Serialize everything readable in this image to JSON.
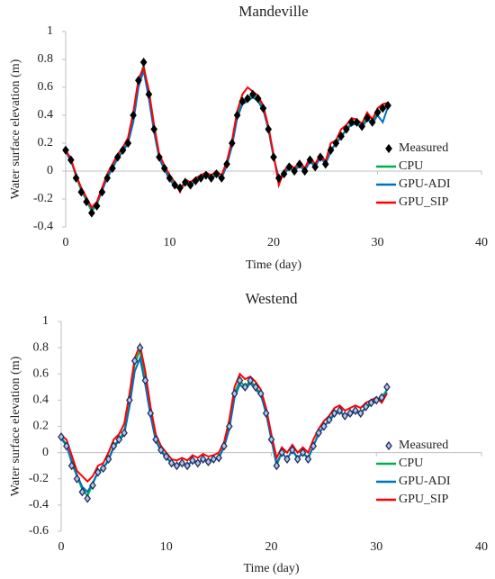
{
  "chart_data": [
    {
      "type": "line",
      "title": "Mandeville",
      "xlabel": "Time (day)",
      "ylabel": "Water surface elevation (m)",
      "xlim": [
        0,
        40
      ],
      "xticks": [
        0,
        10,
        20,
        30,
        40
      ],
      "ylim": [
        -0.4,
        1
      ],
      "yticks": [
        -0.4,
        -0.2,
        0,
        0.2,
        0.4,
        0.6,
        0.8,
        1
      ],
      "x": [
        0,
        0.5,
        1,
        1.5,
        2,
        2.5,
        3,
        3.5,
        4,
        4.5,
        5,
        5.5,
        6,
        6.5,
        7,
        7.5,
        8,
        8.5,
        9,
        9.5,
        10,
        10.5,
        11,
        11.5,
        12,
        12.5,
        13,
        13.5,
        14,
        14.5,
        15,
        15.5,
        16,
        16.5,
        17,
        17.5,
        18,
        18.5,
        19,
        19.5,
        20,
        20.5,
        21,
        21.5,
        22,
        22.5,
        23,
        23.5,
        24,
        24.5,
        25,
        25.5,
        26,
        26.5,
        27,
        27.5,
        28,
        28.5,
        29,
        29.5,
        30,
        30.5,
        31
      ],
      "series": [
        {
          "name": "CPU",
          "color": "#00b050",
          "mode": "line",
          "values": [
            0.15,
            0.08,
            -0.04,
            -0.14,
            -0.21,
            -0.29,
            -0.24,
            -0.14,
            -0.04,
            0.03,
            0.1,
            0.15,
            0.21,
            0.4,
            0.64,
            0.76,
            0.55,
            0.3,
            0.1,
            0.02,
            -0.05,
            -0.1,
            -0.12,
            -0.08,
            -0.1,
            -0.07,
            -0.05,
            -0.03,
            -0.05,
            -0.02,
            -0.05,
            0.05,
            0.2,
            0.4,
            0.5,
            0.52,
            0.55,
            0.52,
            0.45,
            0.3,
            0.1,
            -0.05,
            -0.02,
            0.03,
            0,
            0.05,
            0,
            0.08,
            0.03,
            0.1,
            0.05,
            0.15,
            0.2,
            0.25,
            0.3,
            0.35,
            0.35,
            0.32,
            0.38,
            0.35,
            0.42,
            0.45,
            0.47
          ]
        },
        {
          "name": "GPU-ADI",
          "color": "#0070c0",
          "mode": "line",
          "values": [
            0.14,
            0.07,
            -0.02,
            -0.13,
            -0.2,
            -0.27,
            -0.23,
            -0.14,
            -0.05,
            0.02,
            0.09,
            0.14,
            0.2,
            0.35,
            0.6,
            0.72,
            0.52,
            0.28,
            0.09,
            0.01,
            -0.06,
            -0.11,
            -0.13,
            -0.09,
            -0.1,
            -0.07,
            -0.05,
            -0.03,
            -0.05,
            -0.03,
            -0.05,
            0.04,
            0.18,
            0.38,
            0.48,
            0.5,
            0.53,
            0.5,
            0.44,
            0.3,
            0.1,
            -0.05,
            -0.02,
            0.02,
            0,
            0.04,
            0,
            0.07,
            0.03,
            0.1,
            0.05,
            0.14,
            0.2,
            0.24,
            0.3,
            0.33,
            0.34,
            0.31,
            0.37,
            0.34,
            0.4,
            0.35,
            0.46
          ]
        },
        {
          "name": "GPU_SIP",
          "color": "#ff0000",
          "mode": "line",
          "values": [
            0.15,
            0.09,
            -0.03,
            -0.12,
            -0.19,
            -0.26,
            -0.22,
            -0.12,
            -0.02,
            0.05,
            0.12,
            0.17,
            0.24,
            0.42,
            0.66,
            0.74,
            0.58,
            0.33,
            0.12,
            0.04,
            -0.03,
            -0.08,
            -0.15,
            -0.06,
            -0.08,
            -0.05,
            -0.03,
            -0.01,
            -0.03,
            0,
            -0.03,
            0.07,
            0.22,
            0.43,
            0.55,
            0.6,
            0.57,
            0.54,
            0.47,
            0.32,
            0.12,
            -0.1,
            0,
            0.05,
            0.02,
            0.07,
            0.02,
            0.1,
            0.05,
            0.12,
            0.07,
            0.2,
            0.22,
            0.3,
            0.33,
            0.38,
            0.37,
            0.34,
            0.42,
            0.37,
            0.45,
            0.48,
            0.49
          ]
        },
        {
          "name": "Measured",
          "color": "#000000",
          "mode": "markers",
          "values": [
            0.15,
            0.08,
            -0.05,
            -0.15,
            -0.22,
            -0.3,
            -0.25,
            -0.15,
            -0.05,
            0.02,
            0.1,
            0.15,
            0.2,
            0.4,
            0.65,
            0.78,
            0.55,
            0.3,
            0.1,
            0.02,
            -0.05,
            -0.1,
            -0.12,
            -0.08,
            -0.1,
            -0.07,
            -0.05,
            -0.03,
            -0.05,
            -0.02,
            -0.05,
            0.05,
            0.2,
            0.4,
            0.5,
            0.52,
            0.55,
            0.52,
            0.45,
            0.3,
            0.1,
            -0.05,
            -0.02,
            0.03,
            0,
            0.05,
            0,
            0.08,
            0.03,
            0.1,
            0.05,
            0.15,
            0.2,
            0.25,
            0.3,
            0.35,
            0.35,
            0.32,
            0.38,
            0.35,
            0.42,
            0.45,
            0.47
          ]
        }
      ]
    },
    {
      "type": "line",
      "title": "Westend",
      "xlabel": "Time (day)",
      "ylabel": "Water surface elevation (m)",
      "xlim": [
        0,
        40
      ],
      "xticks": [
        0,
        10,
        20,
        30,
        40
      ],
      "ylim": [
        -0.6,
        1
      ],
      "yticks": [
        -0.6,
        -0.4,
        -0.2,
        0,
        0.2,
        0.4,
        0.6,
        0.8,
        1
      ],
      "x": [
        0,
        0.5,
        1,
        1.5,
        2,
        2.5,
        3,
        3.5,
        4,
        4.5,
        5,
        5.5,
        6,
        6.5,
        7,
        7.5,
        8,
        8.5,
        9,
        9.5,
        10,
        10.5,
        11,
        11.5,
        12,
        12.5,
        13,
        13.5,
        14,
        14.5,
        15,
        15.5,
        16,
        16.5,
        17,
        17.5,
        18,
        18.5,
        19,
        19.5,
        20,
        20.5,
        21,
        21.5,
        22,
        22.5,
        23,
        23.5,
        24,
        24.5,
        25,
        25.5,
        26,
        26.5,
        27,
        27.5,
        28,
        28.5,
        29,
        29.5,
        30,
        30.5,
        31
      ],
      "series": [
        {
          "name": "CPU",
          "color": "#00b050",
          "mode": "line",
          "values": [
            0.12,
            0.06,
            -0.08,
            -0.18,
            -0.28,
            -0.33,
            -0.24,
            -0.15,
            -0.12,
            -0.05,
            0.05,
            0.1,
            0.16,
            0.4,
            0.68,
            0.78,
            0.55,
            0.3,
            0.1,
            0.02,
            -0.03,
            -0.08,
            -0.1,
            -0.08,
            -0.1,
            -0.06,
            -0.08,
            -0.05,
            -0.07,
            -0.05,
            -0.04,
            0.05,
            0.2,
            0.45,
            0.55,
            0.5,
            0.55,
            0.5,
            0.45,
            0.3,
            0.1,
            -0.1,
            0,
            -0.05,
            0.02,
            -0.05,
            0,
            -0.05,
            0.05,
            0.15,
            0.2,
            0.25,
            0.3,
            0.32,
            0.28,
            0.3,
            0.32,
            0.3,
            0.35,
            0.38,
            0.4,
            0.42,
            0.48
          ]
        },
        {
          "name": "GPU-ADI",
          "color": "#0070c0",
          "mode": "line",
          "values": [
            0.11,
            0.05,
            -0.06,
            -0.17,
            -0.26,
            -0.3,
            -0.23,
            -0.15,
            -0.12,
            -0.06,
            0.04,
            0.09,
            0.14,
            0.35,
            0.62,
            0.72,
            0.52,
            0.28,
            0.09,
            0.01,
            -0.04,
            -0.08,
            -0.1,
            -0.08,
            -0.1,
            -0.06,
            -0.08,
            -0.05,
            -0.07,
            -0.05,
            -0.04,
            0.04,
            0.18,
            0.42,
            0.52,
            0.48,
            0.53,
            0.48,
            0.44,
            0.3,
            0.1,
            -0.08,
            0,
            -0.05,
            0.02,
            -0.04,
            0,
            -0.04,
            0.05,
            0.14,
            0.2,
            0.24,
            0.29,
            0.31,
            0.28,
            0.3,
            0.31,
            0.3,
            0.34,
            0.37,
            0.39,
            0.41,
            0.46
          ]
        },
        {
          "name": "GPU_SIP",
          "color": "#ff0000",
          "mode": "line",
          "values": [
            0.13,
            0.1,
            -0.02,
            -0.14,
            -0.18,
            -0.22,
            -0.18,
            -0.1,
            -0.08,
            0,
            0.1,
            0.14,
            0.22,
            0.45,
            0.72,
            0.82,
            0.62,
            0.35,
            0.14,
            0.05,
            0,
            -0.05,
            -0.06,
            -0.04,
            -0.06,
            -0.02,
            -0.04,
            -0.01,
            -0.03,
            -0.02,
            0,
            0.08,
            0.25,
            0.5,
            0.6,
            0.56,
            0.58,
            0.54,
            0.48,
            0.34,
            0.14,
            -0.04,
            0.04,
            0,
            0.06,
            0,
            0.04,
            0,
            0.1,
            0.18,
            0.24,
            0.28,
            0.34,
            0.36,
            0.32,
            0.34,
            0.36,
            0.34,
            0.38,
            0.4,
            0.42,
            0.38,
            0.45
          ]
        },
        {
          "name": "Measured",
          "color": "#1f2f5f",
          "mode": "markers",
          "values": [
            0.12,
            0.05,
            -0.1,
            -0.2,
            -0.3,
            -0.35,
            -0.25,
            -0.15,
            -0.12,
            -0.05,
            0.05,
            0.1,
            0.15,
            0.4,
            0.7,
            0.8,
            0.55,
            0.3,
            0.1,
            0.02,
            -0.03,
            -0.08,
            -0.1,
            -0.08,
            -0.1,
            -0.06,
            -0.08,
            -0.05,
            -0.07,
            -0.05,
            -0.04,
            0.05,
            0.2,
            0.45,
            0.55,
            0.5,
            0.55,
            0.5,
            0.45,
            0.3,
            0.1,
            -0.1,
            0,
            -0.05,
            0.02,
            -0.05,
            0,
            -0.05,
            0.05,
            0.15,
            0.2,
            0.25,
            0.3,
            0.32,
            0.28,
            0.3,
            0.32,
            0.3,
            0.35,
            0.38,
            0.4,
            0.42,
            0.5
          ]
        }
      ]
    }
  ]
}
